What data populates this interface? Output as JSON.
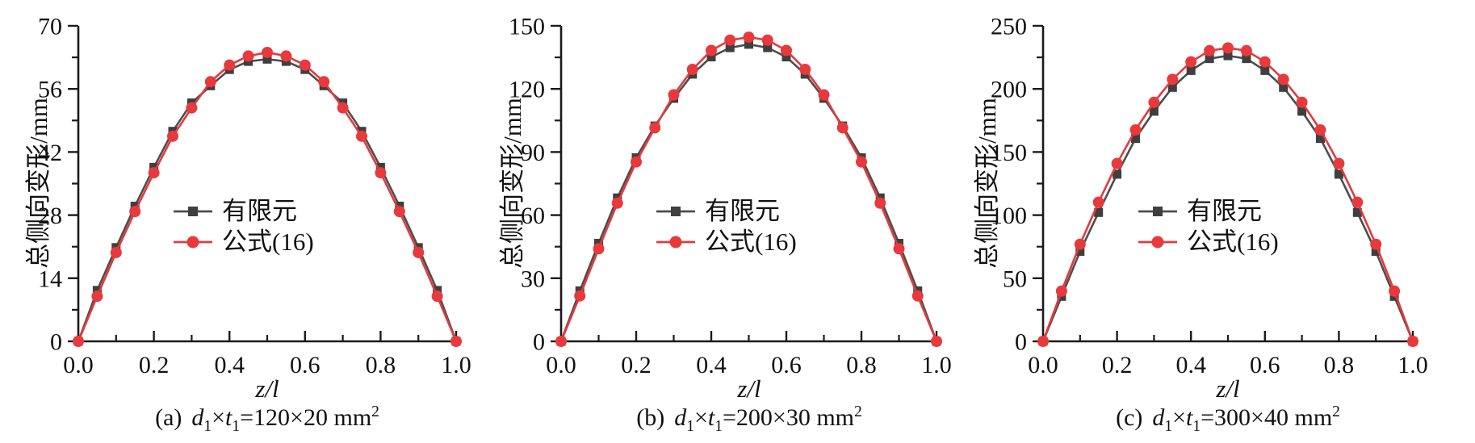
{
  "figure": {
    "background": "#ffffff",
    "axis_color": "#1a1a1a"
  },
  "chart_data": [
    {
      "type": "line",
      "panel": "a",
      "xlabel": "z/l",
      "ylabel": "总侧向变形/mm",
      "caption": {
        "prefix": "(a)",
        "var1": "d",
        "sub1": "1",
        "times": "×",
        "var2": "t",
        "sub2": "1",
        "equals": "=120×20 mm",
        "sup": "2"
      },
      "xlim": [
        0.0,
        1.0
      ],
      "ylim": [
        0,
        70
      ],
      "xticks": [
        0.0,
        0.2,
        0.4,
        0.6,
        0.8,
        1.0
      ],
      "yticks": [
        0,
        14,
        28,
        42,
        56,
        70
      ],
      "x": [
        0,
        0.05,
        0.1,
        0.15,
        0.2,
        0.25,
        0.3,
        0.35,
        0.4,
        0.45,
        0.5,
        0.55,
        0.6,
        0.65,
        0.7,
        0.75,
        0.8,
        0.85,
        0.9,
        0.95,
        1.0
      ],
      "series": [
        {
          "name": "有限元",
          "marker": "square",
          "color": "#3f3f3f",
          "line_color": "#4d4d4d",
          "values": [
            0,
            11.3,
            20.8,
            30.0,
            38.6,
            46.6,
            52.9,
            56.7,
            60.3,
            62.1,
            62.6,
            62.1,
            60.3,
            56.7,
            52.9,
            46.6,
            38.6,
            30.0,
            20.8,
            11.3,
            0
          ]
        },
        {
          "name": "公式(16)",
          "marker": "circle",
          "color": "#e8393d",
          "line_color": "#e23a3e",
          "values": [
            0,
            10.0,
            19.7,
            28.8,
            37.4,
            45.5,
            51.8,
            57.6,
            61.3,
            63.3,
            64.1,
            63.3,
            61.3,
            57.6,
            51.8,
            45.5,
            37.4,
            28.8,
            19.7,
            10.0,
            0
          ]
        }
      ],
      "legend_position": "inside-center"
    },
    {
      "type": "line",
      "panel": "b",
      "xlabel": "z/l",
      "ylabel": "总侧向变形/mm",
      "caption": {
        "prefix": "(b)",
        "var1": "d",
        "sub1": "1",
        "times": "×",
        "var2": "t",
        "sub2": "1",
        "equals": "=200×30 mm",
        "sup": "2"
      },
      "xlim": [
        0.0,
        1.0
      ],
      "ylim": [
        0,
        150
      ],
      "xticks": [
        0.0,
        0.2,
        0.4,
        0.6,
        0.8,
        1.0
      ],
      "yticks": [
        0,
        30,
        60,
        90,
        120,
        150
      ],
      "x": [
        0,
        0.05,
        0.1,
        0.15,
        0.2,
        0.25,
        0.3,
        0.35,
        0.4,
        0.45,
        0.5,
        0.55,
        0.6,
        0.65,
        0.7,
        0.75,
        0.8,
        0.85,
        0.9,
        0.95,
        1.0
      ],
      "series": [
        {
          "name": "有限元",
          "marker": "square",
          "color": "#3f3f3f",
          "line_color": "#4d4d4d",
          "values": [
            0,
            24.0,
            46.6,
            68.2,
            87.3,
            102.4,
            115.5,
            127.0,
            135.2,
            139.6,
            141.2,
            139.6,
            135.2,
            127.0,
            115.5,
            102.4,
            87.3,
            68.2,
            46.6,
            24.0,
            0
          ]
        },
        {
          "name": "公式(16)",
          "marker": "circle",
          "color": "#e8393d",
          "line_color": "#e23a3e",
          "values": [
            0,
            21.6,
            44.0,
            65.7,
            85.3,
            101.5,
            117.2,
            129.3,
            138.3,
            143.2,
            144.6,
            143.2,
            138.3,
            129.3,
            117.2,
            101.5,
            85.3,
            65.7,
            44.0,
            21.6,
            0
          ]
        }
      ],
      "legend_position": "inside-center"
    },
    {
      "type": "line",
      "panel": "c",
      "xlabel": "z/l",
      "ylabel": "总侧向变形/mm",
      "caption": {
        "prefix": "(c)",
        "var1": "d",
        "sub1": "1",
        "times": "×",
        "var2": "t",
        "sub2": "1",
        "equals": "=300×40 mm",
        "sup": "2"
      },
      "xlim": [
        0.0,
        1.0
      ],
      "ylim": [
        0,
        250
      ],
      "xticks": [
        0.0,
        0.2,
        0.4,
        0.6,
        0.8,
        1.0
      ],
      "yticks": [
        0,
        50,
        100,
        150,
        200,
        250
      ],
      "x": [
        0,
        0.05,
        0.1,
        0.15,
        0.2,
        0.25,
        0.3,
        0.35,
        0.4,
        0.45,
        0.5,
        0.55,
        0.6,
        0.65,
        0.7,
        0.75,
        0.8,
        0.85,
        0.9,
        0.95,
        1.0
      ],
      "series": [
        {
          "name": "有限元",
          "marker": "square",
          "color": "#3f3f3f",
          "line_color": "#4d4d4d",
          "values": [
            0,
            35.6,
            71.2,
            102.1,
            132.4,
            160.7,
            182.3,
            201.2,
            214.6,
            224.0,
            226.3,
            224.0,
            214.6,
            201.2,
            182.3,
            160.7,
            132.4,
            102.1,
            71.2,
            35.6,
            0
          ]
        },
        {
          "name": "公式(16)",
          "marker": "circle",
          "color": "#e8393d",
          "line_color": "#e23a3e",
          "values": [
            0,
            39.8,
            76.9,
            110.2,
            140.9,
            167.5,
            189.4,
            207.6,
            221.5,
            230.3,
            232.5,
            230.3,
            221.5,
            207.6,
            189.4,
            167.5,
            140.9,
            110.2,
            76.9,
            39.8,
            0
          ]
        }
      ],
      "legend_position": "inside-center"
    }
  ]
}
